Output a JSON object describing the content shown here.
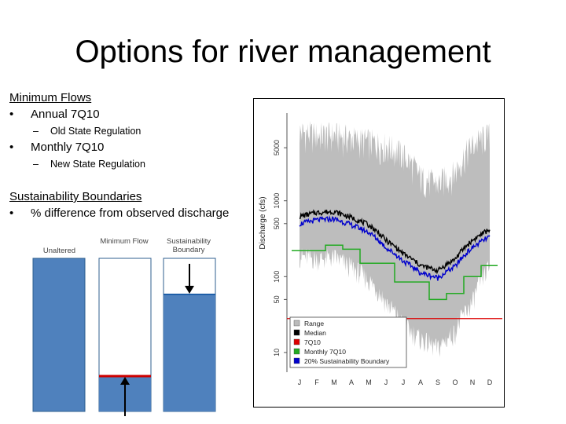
{
  "slide": {
    "title": "Options for river management",
    "minimum_flows": {
      "heading": "Minimum Flows",
      "bullet1": "Annual 7Q10",
      "sub1": "Old State Regulation",
      "bullet2": "Monthly 7Q10",
      "sub2": "New State Regulation"
    },
    "sustainability": {
      "heading": "Sustainability Boundaries",
      "bullet1": "% difference from observed discharge"
    },
    "diagram": {
      "label_unaltered": "Unaltered",
      "label_minflow": "Minimum Flow",
      "label_boundary": "Sustainability Boundary",
      "bar_color": "#4f81bd",
      "minflow_line_color": "#cc0000",
      "boundary_line_color": "#1f5fa8"
    }
  },
  "chart_data": {
    "type": "line",
    "ylabel": "Discharge (cfs)",
    "y_scale": "log",
    "ylim": [
      5,
      20000
    ],
    "yticks": [
      10,
      50,
      100,
      500,
      1000,
      5000
    ],
    "categories": [
      "J",
      "F",
      "M",
      "A",
      "M",
      "J",
      "J",
      "A",
      "S",
      "O",
      "N",
      "D"
    ],
    "legend": [
      {
        "name": "Range",
        "color": "#bbbbbb"
      },
      {
        "name": "Median",
        "color": "#000000"
      },
      {
        "name": "7Q10",
        "color": "#dd0000"
      },
      {
        "name": "Monthly 7Q10",
        "color": "#22aa22"
      },
      {
        "name": "20% Sustainability Boundary",
        "color": "#0000cc"
      }
    ],
    "range_max": [
      12000,
      11000,
      11000,
      10000,
      9000,
      8000,
      6000,
      3000,
      2500,
      3500,
      8000,
      11000
    ],
    "range_min": [
      250,
      230,
      240,
      180,
      120,
      60,
      30,
      20,
      15,
      25,
      60,
      180
    ],
    "median": [
      620,
      700,
      720,
      600,
      480,
      300,
      200,
      140,
      120,
      170,
      300,
      420
    ],
    "boundary": [
      496,
      560,
      576,
      480,
      384,
      240,
      160,
      112,
      96,
      136,
      240,
      336
    ],
    "monthly_7q10": [
      220,
      220,
      260,
      230,
      150,
      150,
      85,
      85,
      50,
      60,
      100,
      140
    ],
    "annual_7q10": 28
  }
}
